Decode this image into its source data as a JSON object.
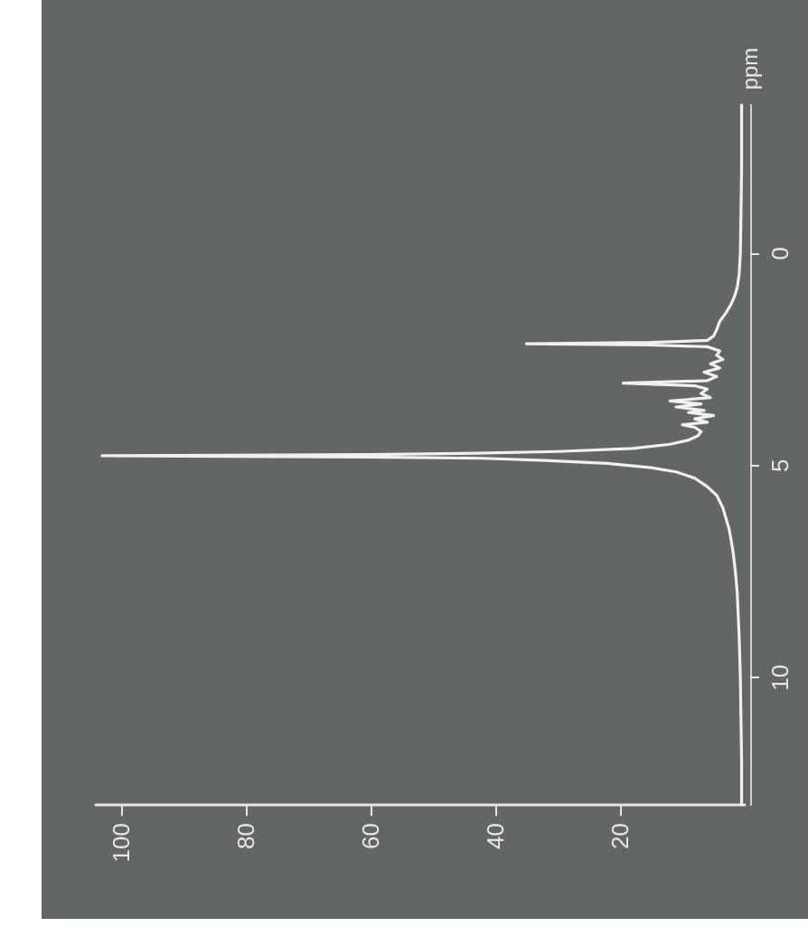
{
  "chart_data": {
    "type": "line",
    "ylabel": "ppm",
    "x": [
      0.5,
      0.5,
      0.6,
      0.7,
      0.9,
      1.2,
      1.5,
      1.9,
      2.5,
      3.5,
      4.5,
      6,
      8,
      11,
      15,
      22,
      32,
      42,
      60,
      103,
      60,
      43,
      30,
      18,
      12,
      9,
      7.5,
      7,
      8,
      10,
      6,
      8,
      5,
      9,
      6.5,
      11,
      7,
      12,
      5.5,
      7,
      6,
      8,
      19.5,
      6,
      4.5,
      6.5,
      4,
      5.5,
      3.5,
      4.5,
      4,
      6,
      15,
      35,
      15,
      6,
      5,
      4.5,
      4,
      3,
      2.2,
      1.6,
      1.2,
      0.9,
      0.7,
      0.6,
      0.5,
      0.5
    ],
    "series": [
      {
        "color": "#f0f0f0",
        "values": [
          13,
          12,
          11,
          10,
          9,
          8,
          7.5,
          7,
          6.5,
          6,
          5.7,
          5.5,
          5.3,
          5.15,
          5.05,
          4.95,
          4.88,
          4.83,
          4.8,
          4.77,
          4.74,
          4.71,
          4.67,
          4.6,
          4.5,
          4.4,
          4.3,
          4.2,
          4.1,
          4.04,
          3.98,
          3.9,
          3.82,
          3.75,
          3.7,
          3.62,
          3.55,
          3.48,
          3.4,
          3.3,
          3.2,
          3.12,
          3.06,
          3.0,
          2.9,
          2.8,
          2.7,
          2.6,
          2.5,
          2.4,
          2.3,
          2.2,
          2.16,
          2.13,
          2.1,
          2.05,
          1.95,
          1.8,
          1.6,
          1.4,
          1.2,
          1.0,
          0.8,
          0.5,
          0,
          -1,
          -2,
          -3.5
        ]
      }
    ],
    "xlim": [
      104,
      0
    ],
    "xticks": [
      100,
      80,
      60,
      40,
      20
    ],
    "ylim": [
      13,
      -3.5
    ],
    "yticks": [
      10,
      5,
      0
    ],
    "grid": false,
    "marker": "none",
    "line_style": "solid"
  }
}
